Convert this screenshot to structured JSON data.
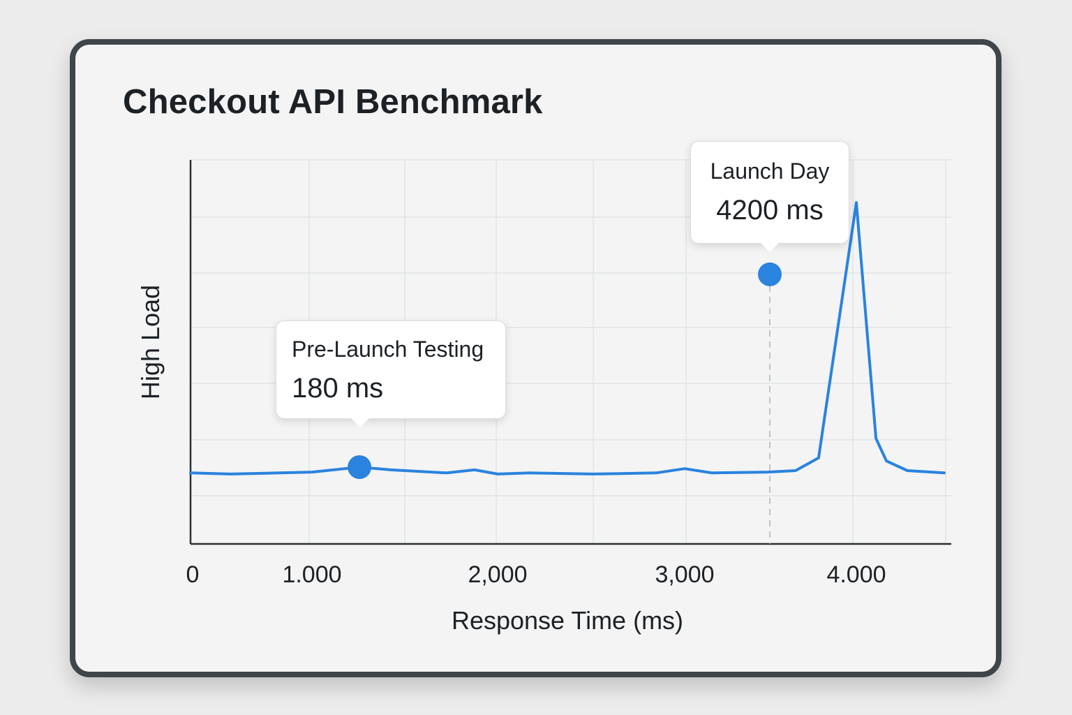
{
  "chart_data": {
    "type": "line",
    "title": "Checkout API Benchmark",
    "xlabel": "Response Time (ms)",
    "ylabel": "High Load",
    "xlim": [
      0,
      4512
    ],
    "ylim": [
      0,
      100
    ],
    "x_ticks": [
      {
        "value": 0,
        "label": "0"
      },
      {
        "value": 1000,
        "label": "1.000"
      },
      {
        "value": 2000,
        "label": "2,000"
      },
      {
        "value": 3000,
        "label": "3,000"
      },
      {
        "value": 4000,
        "label": "4.000"
      }
    ],
    "grid": true,
    "line_color": "#2a83de",
    "series": [
      {
        "x": [
          0,
          328,
          730,
          1000,
          1256,
          1425,
          1726,
          1876,
          2000,
          2175,
          2511,
          2847,
          3000,
          3159,
          3484,
          3646,
          3780,
          4000,
          4114,
          4175,
          4297,
          4512
        ],
        "y": [
          18.5,
          18.2,
          18.5,
          18.7,
          20.0,
          19.3,
          18.5,
          19.3,
          18.2,
          18.5,
          18.2,
          18.5,
          19.6,
          18.5,
          18.7,
          19.1,
          22.4,
          88.9,
          27.5,
          21.6,
          19.1,
          18.5
        ]
      }
    ],
    "annotations": [
      {
        "label": "Pre-Launch Testing",
        "value": "180 ms",
        "x": 1256,
        "y": 20.0,
        "dashed_guide": false
      },
      {
        "label": "Launch Day",
        "value": "4200 ms",
        "x": 3496,
        "y": 70.2,
        "dashed_guide": true
      }
    ]
  }
}
